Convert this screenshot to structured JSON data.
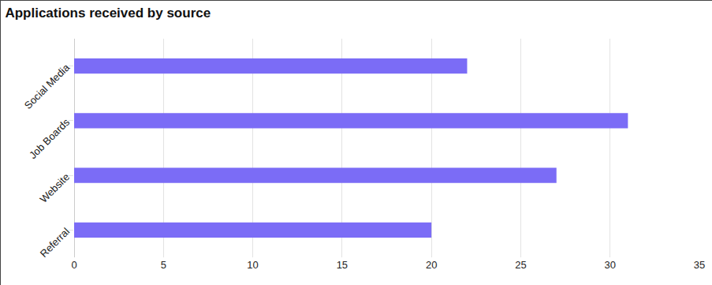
{
  "chart_data": {
    "type": "bar",
    "title": "Applications received by source",
    "orientation": "horizontal",
    "categories": [
      "Social Media",
      "Job Boards",
      "Website",
      "Referral"
    ],
    "values": [
      22,
      31,
      27,
      20
    ],
    "color": "#7b6cf6",
    "xlim": [
      0,
      35
    ],
    "xticks": [
      0,
      5,
      10,
      15,
      20,
      25,
      30,
      35
    ],
    "grid": true
  }
}
